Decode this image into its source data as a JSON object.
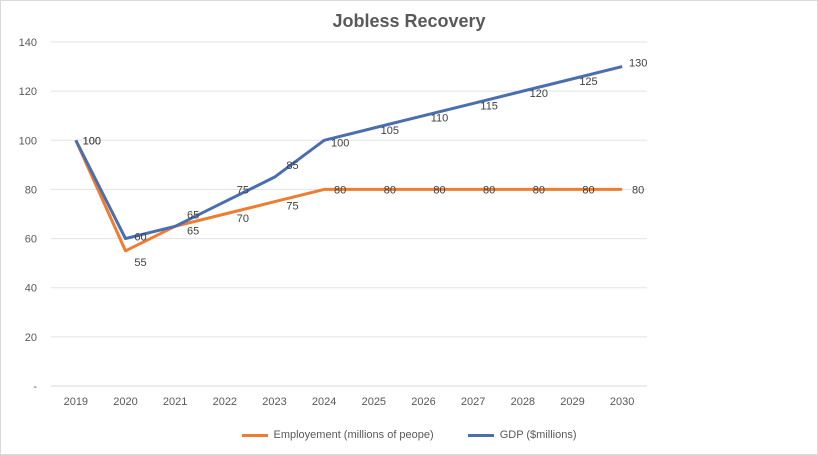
{
  "chart_data": {
    "type": "line",
    "title": "Jobless Recovery",
    "xlabel": "",
    "ylabel": "",
    "categories": [
      "2019",
      "2020",
      "2021",
      "2022",
      "2023",
      "2024",
      "2025",
      "2026",
      "2027",
      "2028",
      "2029",
      "2030"
    ],
    "y_ticks": [
      "-",
      "20",
      "40",
      "60",
      "80",
      "100",
      "120",
      "140"
    ],
    "ylim": [
      0,
      140
    ],
    "grid": true,
    "legend_position": "bottom",
    "series": [
      {
        "name": "Employement (millions of peope)",
        "color": "#ed7d31",
        "values": [
          100,
          55,
          65,
          70,
          75,
          80,
          80,
          80,
          80,
          80,
          80,
          80
        ],
        "labels": [
          "100",
          "55",
          "65",
          "70",
          "75",
          "80",
          "80",
          "80",
          "80",
          "80",
          "80",
          "80"
        ]
      },
      {
        "name": "GDP ($millions)",
        "color": "#4a6eb0",
        "values": [
          100,
          60,
          65,
          75,
          85,
          100,
          105,
          110,
          115,
          120,
          125,
          130
        ],
        "labels": [
          "100",
          "60",
          "65",
          "75",
          "85",
          "100",
          "105",
          "110",
          "115",
          "120",
          "125",
          "130"
        ]
      }
    ]
  }
}
